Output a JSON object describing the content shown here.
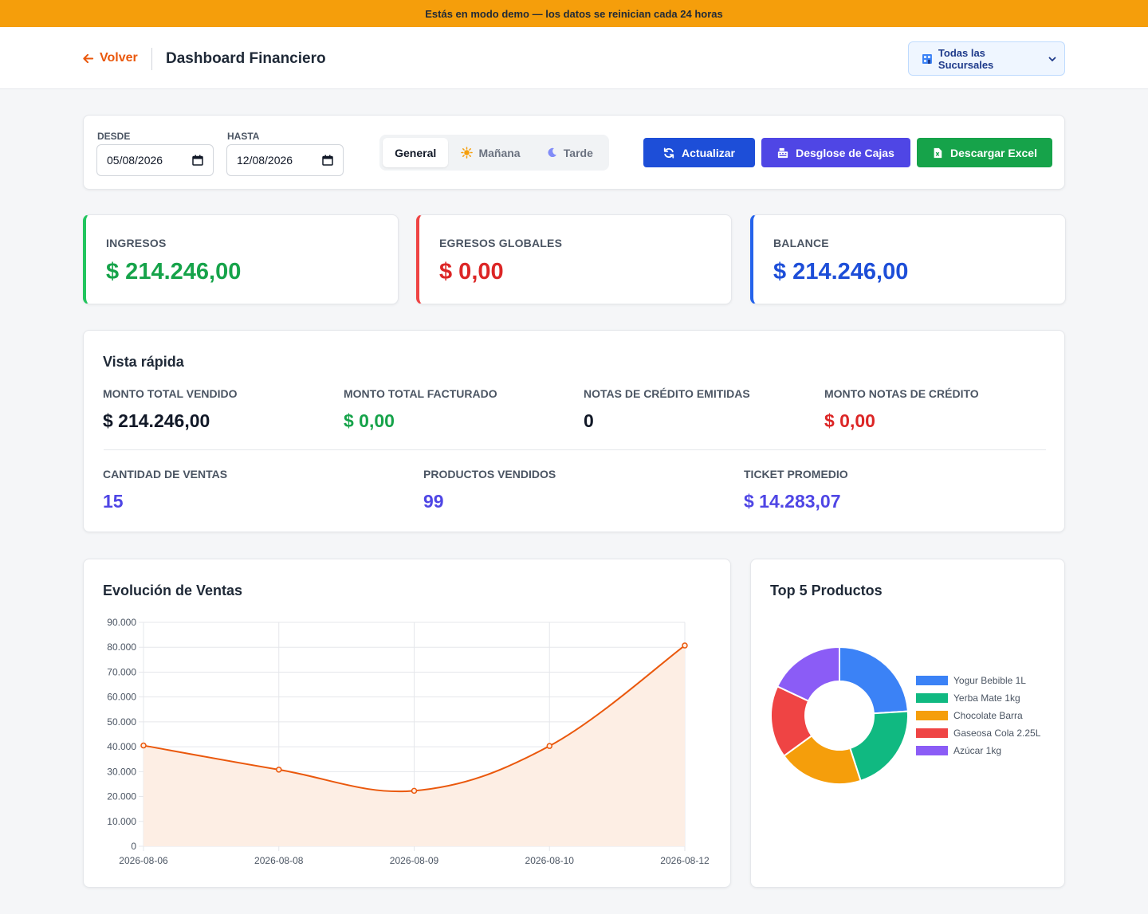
{
  "demo_banner": "Estás en modo demo — los datos se reinician cada 24 horas",
  "header": {
    "back_label": "Volver",
    "title": "Dashboard Financiero",
    "branch_select": "Todas las Sucursales"
  },
  "filters": {
    "from_label": "DESDE",
    "from_value": "05/08/2026",
    "to_label": "HASTA",
    "to_value": "12/08/2026",
    "shifts": [
      {
        "label": "General",
        "active": true,
        "icon": "none"
      },
      {
        "label": "Mañana",
        "active": false,
        "icon": "sun-icon"
      },
      {
        "label": "Tarde",
        "active": false,
        "icon": "moon-icon"
      }
    ],
    "buttons": {
      "refresh": "Actualizar",
      "breakdown": "Desglose de Cajas",
      "excel": "Descargar Excel"
    }
  },
  "kpis": [
    {
      "label": "INGRESOS",
      "value": "$ 214.246,00",
      "color": "#16a34a"
    },
    {
      "label": "EGRESOS GLOBALES",
      "value": "$ 0,00",
      "color": "#dc2626"
    },
    {
      "label": "BALANCE",
      "value": "$ 214.246,00",
      "color": "#1d4ed8"
    }
  ],
  "quick_view": {
    "title": "Vista rápida",
    "row1": [
      {
        "label": "MONTO TOTAL VENDIDO",
        "value": "$ 214.246,00",
        "color": "#111827"
      },
      {
        "label": "MONTO TOTAL FACTURADO",
        "value": "$ 0,00",
        "color": "#16a34a"
      },
      {
        "label": "NOTAS DE CRÉDITO EMITIDAS",
        "value": "0",
        "color": "#111827"
      },
      {
        "label": "MONTO NOTAS DE CRÉDITO",
        "value": "$ 0,00",
        "color": "#dc2626"
      }
    ],
    "row2": [
      {
        "label": "CANTIDAD DE VENTAS",
        "value": "15",
        "color": "#4f46e5"
      },
      {
        "label": "PRODUCTOS VENDIDOS",
        "value": "99",
        "color": "#4f46e5"
      },
      {
        "label": "TICKET PROMEDIO",
        "value": "$ 14.283,07",
        "color": "#4f46e5"
      }
    ]
  },
  "chart_data": [
    {
      "type": "area",
      "title": "Evolución de Ventas",
      "categories": [
        "2026-08-06",
        "2026-08-08",
        "2026-08-09",
        "2026-08-10",
        "2026-08-12"
      ],
      "values": [
        40500,
        30800,
        22300,
        40300,
        80700
      ],
      "ylim": [
        0,
        90000
      ],
      "yticks": [
        0,
        10000,
        20000,
        30000,
        40000,
        50000,
        60000,
        70000,
        80000,
        90000
      ],
      "ytick_labels": [
        "0",
        "10.000",
        "20.000",
        "30.000",
        "40.000",
        "50.000",
        "60.000",
        "70.000",
        "80.000",
        "90.000"
      ],
      "grid": true,
      "color": "#ea580c",
      "fill": "#fdeee4"
    },
    {
      "type": "pie",
      "title": "Top 5 Productos",
      "donut": true,
      "legend_position": "right",
      "slices": [
        {
          "label": "Yogur Bebible 1L",
          "value": 24,
          "color": "#3b82f6"
        },
        {
          "label": "Yerba Mate 1kg",
          "value": 21,
          "color": "#10b981"
        },
        {
          "label": "Chocolate Barra",
          "value": 20,
          "color": "#f59e0b"
        },
        {
          "label": "Gaseosa Cola 2.25L",
          "value": 17,
          "color": "#ef4444"
        },
        {
          "label": "Azúcar 1kg",
          "value": 18,
          "color": "#8b5cf6"
        }
      ]
    }
  ]
}
